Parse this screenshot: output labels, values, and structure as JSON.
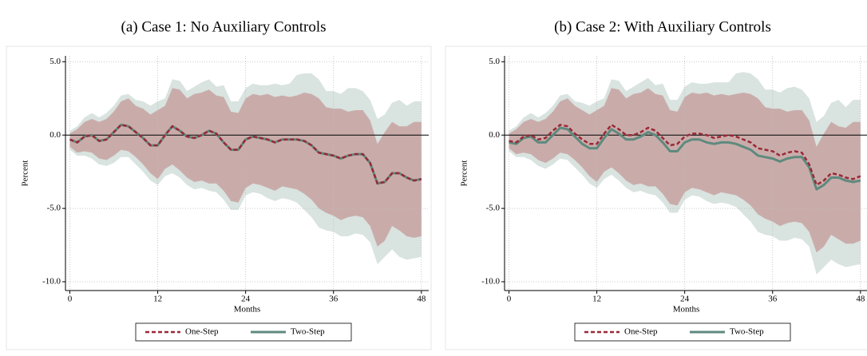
{
  "chart_data": [
    {
      "type": "line",
      "title": "(a) Case 1: No Auxiliary Controls",
      "xlabel": "Months",
      "ylabel": "Percent",
      "x": [
        0,
        1,
        2,
        3,
        4,
        5,
        6,
        7,
        8,
        9,
        10,
        11,
        12,
        13,
        14,
        15,
        16,
        17,
        18,
        19,
        20,
        21,
        22,
        23,
        24,
        25,
        26,
        27,
        28,
        29,
        30,
        31,
        32,
        33,
        34,
        35,
        36,
        37,
        38,
        39,
        40,
        41,
        42,
        43,
        44,
        45,
        46,
        47,
        48
      ],
      "xlim": [
        -0.6,
        49
      ],
      "xticks": [
        0,
        12,
        24,
        36,
        48
      ],
      "ylim": [
        -10.6,
        5.4
      ],
      "yticks": [
        {
          "value": 5,
          "label": "5.0"
        },
        {
          "value": 0,
          "label": "0.0"
        },
        {
          "value": -5,
          "label": "-5.0"
        },
        {
          "value": -10,
          "label": "-10.0"
        }
      ],
      "grid": true,
      "hline": 0,
      "bands": [
        {
          "color": "#d9e3e0",
          "lower": [
            -1.0,
            -1.4,
            -1.4,
            -1.6,
            -2.0,
            -2.1,
            -1.9,
            -1.5,
            -1.5,
            -2.0,
            -2.5,
            -3.1,
            -3.4,
            -2.8,
            -2.6,
            -2.9,
            -3.4,
            -3.7,
            -3.6,
            -3.8,
            -3.9,
            -4.4,
            -5.1,
            -5.1,
            -4.1,
            -3.9,
            -4.0,
            -4.3,
            -4.5,
            -4.3,
            -4.4,
            -4.6,
            -5.1,
            -5.6,
            -6.3,
            -6.5,
            -6.6,
            -6.9,
            -6.9,
            -6.7,
            -6.8,
            -7.3,
            -8.8,
            -8.3,
            -7.8,
            -8.3,
            -8.5,
            -8.4,
            -8.3
          ],
          "upper": [
            0.3,
            0.6,
            1.2,
            1.5,
            1.2,
            1.5,
            2.0,
            2.7,
            2.8,
            2.4,
            2.3,
            2.0,
            2.3,
            2.5,
            3.8,
            3.7,
            3.0,
            3.3,
            3.6,
            3.8,
            3.3,
            3.4,
            2.3,
            2.3,
            3.2,
            3.5,
            3.4,
            3.4,
            3.5,
            3.4,
            3.5,
            4.1,
            4.2,
            4.2,
            3.8,
            3.0,
            3.0,
            2.8,
            3.2,
            3.2,
            3.0,
            2.4,
            1.1,
            1.4,
            2.2,
            2.4,
            2.0,
            2.3,
            2.3
          ]
        },
        {
          "color": "#c9acaa",
          "lower": [
            -0.8,
            -1.2,
            -1.1,
            -1.2,
            -1.6,
            -1.7,
            -1.4,
            -1.0,
            -1.1,
            -1.5,
            -2.0,
            -2.6,
            -3.0,
            -2.3,
            -2.0,
            -2.4,
            -2.9,
            -3.2,
            -3.1,
            -3.3,
            -3.3,
            -3.8,
            -4.5,
            -4.6,
            -3.6,
            -3.3,
            -3.4,
            -3.6,
            -3.8,
            -3.5,
            -3.6,
            -3.7,
            -4.0,
            -4.4,
            -5.0,
            -5.3,
            -5.5,
            -5.8,
            -5.6,
            -5.5,
            -5.6,
            -6.2,
            -7.6,
            -7.2,
            -6.2,
            -6.5,
            -6.9,
            -7.0,
            -6.9
          ],
          "upper": [
            0.1,
            0.4,
            0.9,
            1.1,
            0.9,
            1.1,
            1.6,
            2.3,
            2.5,
            2.0,
            1.8,
            1.4,
            1.7,
            2.0,
            3.2,
            3.1,
            2.5,
            2.8,
            2.9,
            3.1,
            2.7,
            2.6,
            1.6,
            1.5,
            2.5,
            2.8,
            2.7,
            2.8,
            2.6,
            2.7,
            2.6,
            2.7,
            2.9,
            2.8,
            2.5,
            1.9,
            1.8,
            1.8,
            1.6,
            1.7,
            1.7,
            1.0,
            -0.6,
            0.2,
            0.9,
            0.6,
            0.6,
            0.9,
            0.9
          ]
        }
      ],
      "series": [
        {
          "name": "Two-Step",
          "color": "#5e8a7e",
          "dashed": false,
          "values": [
            -0.3,
            -0.5,
            -0.1,
            0.0,
            -0.4,
            -0.3,
            0.2,
            0.7,
            0.6,
            0.2,
            -0.2,
            -0.7,
            -0.7,
            0.0,
            0.6,
            0.3,
            -0.1,
            -0.2,
            0.0,
            0.3,
            0.1,
            -0.5,
            -1.0,
            -1.0,
            -0.3,
            -0.1,
            -0.2,
            -0.3,
            -0.5,
            -0.3,
            -0.3,
            -0.3,
            -0.4,
            -0.7,
            -1.2,
            -1.3,
            -1.4,
            -1.6,
            -1.4,
            -1.3,
            -1.3,
            -1.9,
            -3.3,
            -3.2,
            -2.6,
            -2.6,
            -2.9,
            -3.1,
            -3.0
          ]
        },
        {
          "name": "One-Step",
          "color": "#9b2836",
          "dashed": true,
          "values": [
            -0.3,
            -0.5,
            -0.1,
            0.0,
            -0.4,
            -0.3,
            0.2,
            0.7,
            0.6,
            0.2,
            -0.2,
            -0.7,
            -0.7,
            0.0,
            0.6,
            0.3,
            -0.1,
            -0.2,
            0.0,
            0.3,
            0.1,
            -0.5,
            -1.0,
            -1.0,
            -0.3,
            -0.1,
            -0.2,
            -0.3,
            -0.5,
            -0.3,
            -0.3,
            -0.3,
            -0.4,
            -0.7,
            -1.2,
            -1.3,
            -1.4,
            -1.6,
            -1.4,
            -1.3,
            -1.3,
            -1.9,
            -3.3,
            -3.2,
            -2.6,
            -2.6,
            -2.9,
            -3.1,
            -3.0
          ]
        }
      ]
    },
    {
      "type": "line",
      "title": "(b) Case 2: With Auxiliary Controls",
      "xlabel": "Months",
      "ylabel": "Percent",
      "x": [
        0,
        1,
        2,
        3,
        4,
        5,
        6,
        7,
        8,
        9,
        10,
        11,
        12,
        13,
        14,
        15,
        16,
        17,
        18,
        19,
        20,
        21,
        22,
        23,
        24,
        25,
        26,
        27,
        28,
        29,
        30,
        31,
        32,
        33,
        34,
        35,
        36,
        37,
        38,
        39,
        40,
        41,
        42,
        43,
        44,
        45,
        46,
        47,
        48
      ],
      "xlim": [
        -0.6,
        49
      ],
      "xticks": [
        0,
        12,
        24,
        36,
        48
      ],
      "ylim": [
        -10.6,
        5.4
      ],
      "yticks": [
        {
          "value": 5,
          "label": "5.0"
        },
        {
          "value": 0,
          "label": "0.0"
        },
        {
          "value": -5,
          "label": "-5.0"
        },
        {
          "value": -10,
          "label": "-10.0"
        }
      ],
      "grid": true,
      "hline": 0,
      "bands": [
        {
          "color": "#d9e3e0",
          "lower": [
            -1.1,
            -1.5,
            -1.5,
            -1.7,
            -2.1,
            -2.3,
            -2.0,
            -1.6,
            -1.7,
            -2.2,
            -2.7,
            -3.3,
            -3.6,
            -3.0,
            -2.7,
            -3.1,
            -3.6,
            -3.9,
            -3.8,
            -4.0,
            -4.1,
            -4.6,
            -5.3,
            -5.3,
            -4.4,
            -4.1,
            -4.2,
            -4.5,
            -4.7,
            -4.6,
            -4.7,
            -4.9,
            -5.4,
            -5.9,
            -6.6,
            -6.8,
            -6.9,
            -7.2,
            -7.2,
            -7.0,
            -7.1,
            -7.6,
            -9.5,
            -9.0,
            -8.5,
            -8.8,
            -9.0,
            -8.9,
            -8.8
          ],
          "upper": [
            0.3,
            0.6,
            1.2,
            1.5,
            1.2,
            1.5,
            2.0,
            2.7,
            2.8,
            2.3,
            2.2,
            2.0,
            2.3,
            2.5,
            3.8,
            3.7,
            3.0,
            3.3,
            3.6,
            3.9,
            3.4,
            3.5,
            2.4,
            2.4,
            3.3,
            3.6,
            3.5,
            3.5,
            3.6,
            3.6,
            3.6,
            4.2,
            4.3,
            4.2,
            3.8,
            3.1,
            3.1,
            2.9,
            3.2,
            3.3,
            3.1,
            2.5,
            0.9,
            1.3,
            2.2,
            2.4,
            1.9,
            2.4,
            2.4
          ]
        },
        {
          "color": "#c9acaa",
          "lower": [
            -0.9,
            -1.3,
            -1.2,
            -1.3,
            -1.7,
            -1.9,
            -1.6,
            -1.2,
            -1.3,
            -1.7,
            -2.2,
            -2.8,
            -3.2,
            -2.5,
            -2.2,
            -2.6,
            -3.1,
            -3.4,
            -3.3,
            -3.5,
            -3.5,
            -4.0,
            -4.7,
            -4.8,
            -3.9,
            -3.6,
            -3.7,
            -3.9,
            -4.1,
            -3.9,
            -4.0,
            -4.1,
            -4.4,
            -4.8,
            -5.4,
            -5.7,
            -5.9,
            -6.2,
            -6.0,
            -5.9,
            -6.0,
            -6.6,
            -8.0,
            -7.6,
            -6.8,
            -7.1,
            -7.4,
            -7.4,
            -7.2
          ],
          "upper": [
            0.1,
            0.4,
            0.9,
            1.1,
            0.9,
            1.1,
            1.6,
            2.3,
            2.5,
            2.0,
            1.7,
            1.4,
            1.7,
            2.0,
            3.2,
            3.1,
            2.5,
            2.8,
            2.9,
            3.2,
            2.8,
            2.7,
            1.7,
            1.6,
            2.6,
            2.9,
            2.8,
            2.9,
            2.7,
            2.8,
            2.7,
            2.8,
            2.9,
            2.8,
            2.5,
            1.9,
            1.8,
            1.8,
            1.6,
            1.7,
            1.7,
            1.0,
            -0.8,
            0.1,
            0.9,
            0.6,
            0.5,
            0.9,
            0.9
          ]
        }
      ],
      "series": [
        {
          "name": "Two-Step",
          "color": "#5e8a7e",
          "dashed": false,
          "values": [
            -0.5,
            -0.6,
            -0.2,
            -0.1,
            -0.5,
            -0.5,
            0.0,
            0.5,
            0.4,
            -0.1,
            -0.6,
            -0.9,
            -0.9,
            -0.2,
            0.4,
            0.1,
            -0.3,
            -0.3,
            -0.1,
            0.2,
            0.0,
            -0.5,
            -1.1,
            -1.1,
            -0.5,
            -0.3,
            -0.3,
            -0.5,
            -0.6,
            -0.5,
            -0.5,
            -0.6,
            -0.8,
            -1.0,
            -1.4,
            -1.5,
            -1.6,
            -1.8,
            -1.6,
            -1.5,
            -1.5,
            -2.2,
            -3.7,
            -3.4,
            -2.9,
            -2.9,
            -3.1,
            -3.2,
            -3.1
          ]
        },
        {
          "name": "One-Step",
          "color": "#9b2836",
          "dashed": true,
          "values": [
            -0.4,
            -0.5,
            -0.1,
            0.0,
            -0.3,
            -0.2,
            0.3,
            0.7,
            0.6,
            0.1,
            -0.3,
            -0.6,
            -0.6,
            0.1,
            0.7,
            0.4,
            0.0,
            0.0,
            0.2,
            0.5,
            0.3,
            -0.2,
            -0.7,
            -0.6,
            -0.1,
            0.1,
            0.1,
            0.0,
            -0.2,
            -0.1,
            0.0,
            -0.1,
            -0.3,
            -0.5,
            -0.9,
            -1.0,
            -1.1,
            -1.4,
            -1.2,
            -1.1,
            -1.2,
            -2.0,
            -3.4,
            -3.1,
            -2.6,
            -2.7,
            -2.9,
            -3.0,
            -2.8
          ]
        }
      ]
    }
  ]
}
